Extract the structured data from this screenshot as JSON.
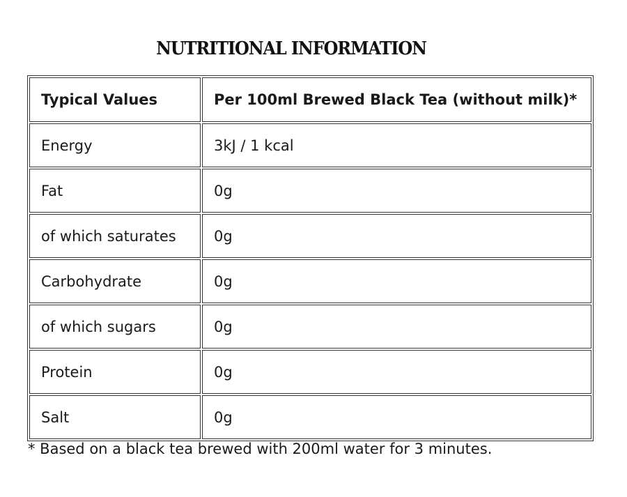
{
  "title": "NUTRITIONAL INFORMATION",
  "table": {
    "headers": [
      "Typical Values",
      "Per 100ml Brewed Black Tea (without milk)*"
    ],
    "rows": [
      [
        "Energy",
        "3kJ / 1 kcal"
      ],
      [
        "Fat",
        "0g"
      ],
      [
        "of which saturates",
        "0g"
      ],
      [
        "Carbohydrate",
        "0g"
      ],
      [
        "of which sugars",
        "0g"
      ],
      [
        "Protein",
        "0g"
      ],
      [
        "Salt",
        "0g"
      ]
    ]
  },
  "footnote": "* Based on a black tea brewed with 200ml water for 3 minutes."
}
